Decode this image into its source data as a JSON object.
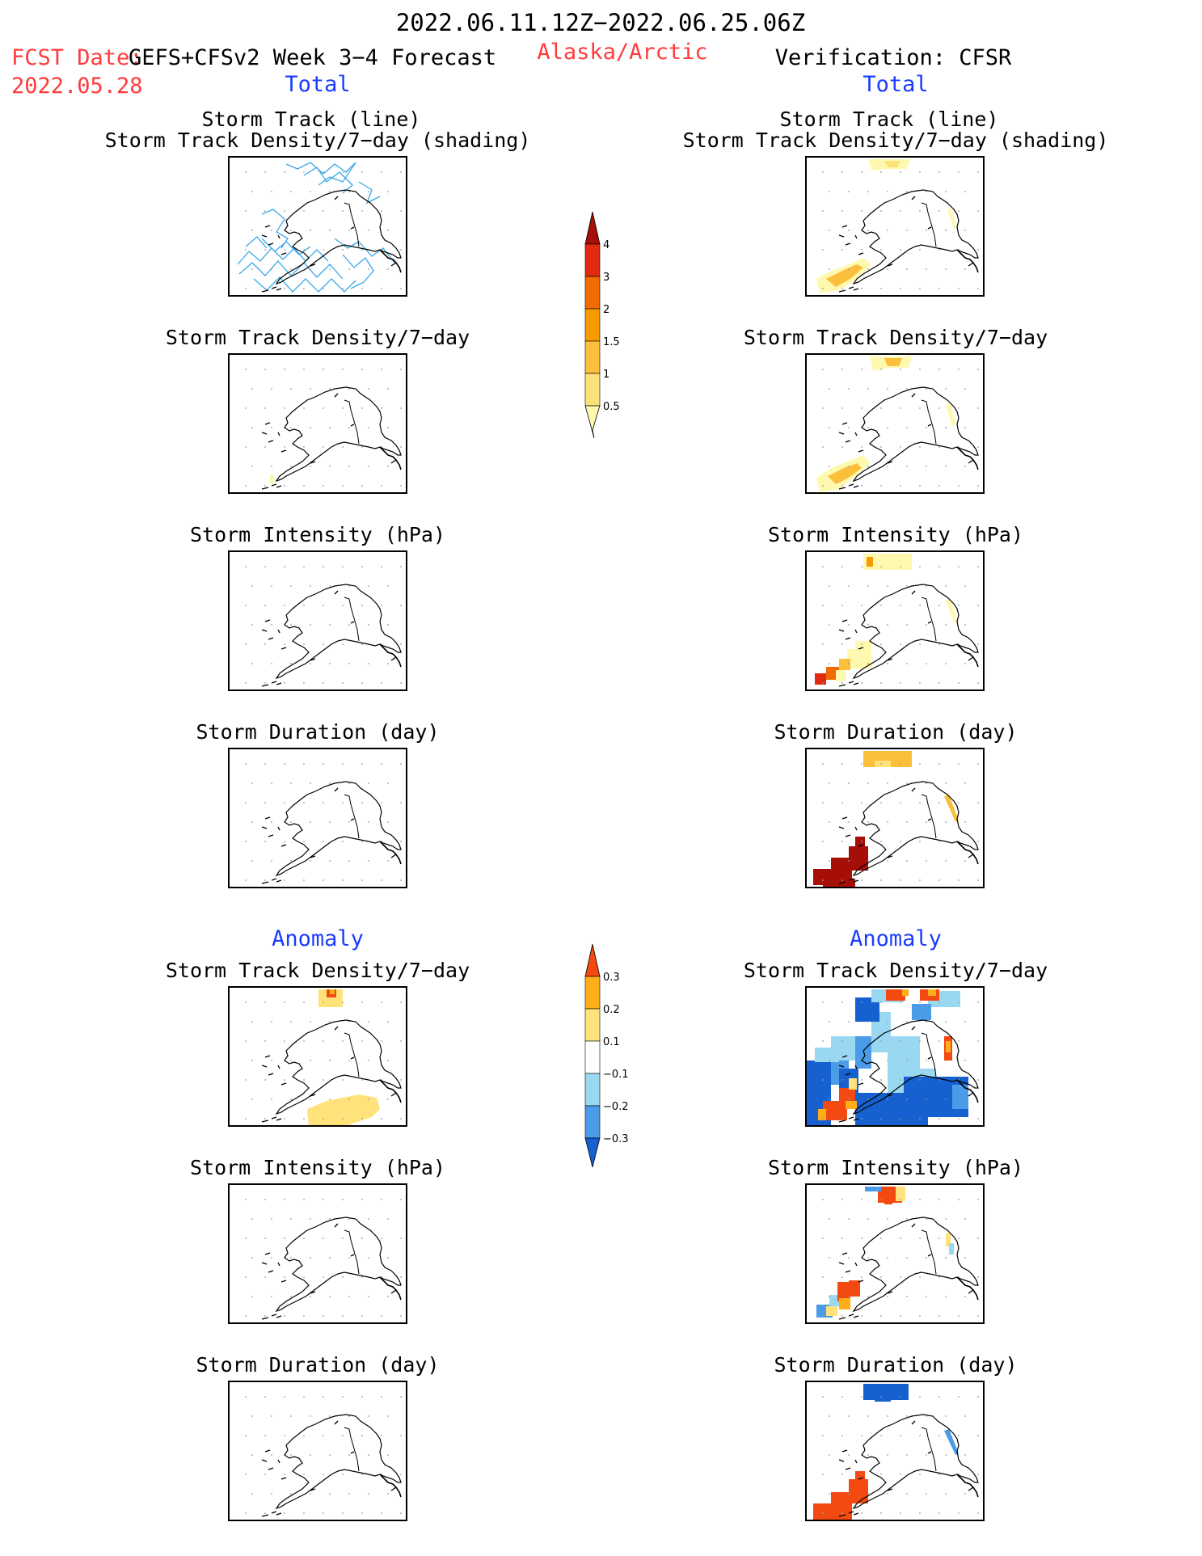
{
  "header": {
    "date_range": "2022.06.11.12Z−2022.06.25.06Z",
    "fcst_label": "FCST Date:",
    "fcst_model": "GEFS+CFSv2 Week 3−4 Forecast",
    "fcst_date": "2022.05.28",
    "region": "Alaska/Arctic",
    "verification": "Verification: CFSR"
  },
  "section_labels": {
    "total": "Total",
    "anomaly": "Anomaly"
  },
  "panel_titles": {
    "track_line": "Storm Track (line)",
    "track_density_shading": "Storm Track Density/7−day (shading)",
    "track_density": "Storm Track Density/7−day",
    "intensity": "Storm Intensity (hPa)",
    "duration": "Storm Duration (day)"
  },
  "colorbars": {
    "total": {
      "ticks": [
        "0.5",
        "1",
        "1.5",
        "2",
        "3",
        "4"
      ],
      "colors": [
        "#fff9b0",
        "#fde27a",
        "#fbbf3c",
        "#f79b00",
        "#f26b00",
        "#e12a0f",
        "#a50f08"
      ]
    },
    "anomaly": {
      "ticks": [
        "−0.3",
        "−0.2",
        "−0.1",
        "0.1",
        "0.2",
        "0.3"
      ],
      "colors": [
        "#1660d0",
        "#4a9be8",
        "#9ad8f2",
        "#ffffff",
        "#ffe37a",
        "#ffae1a",
        "#f24a10"
      ]
    }
  },
  "colors": {
    "track_line": "#3aa8e6",
    "coastline": "#000000",
    "title_red": "#ff3b3b",
    "title_blue": "#1a3cff"
  }
}
